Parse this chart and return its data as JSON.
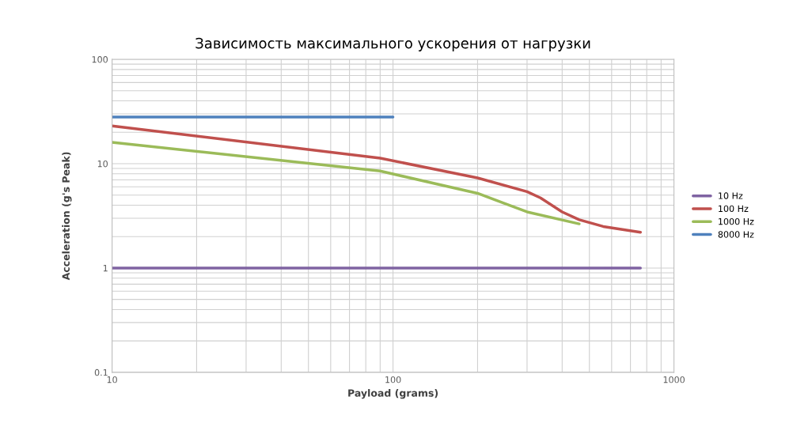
{
  "chart_data": {
    "type": "line",
    "title": "Зависимость максимального ускорения от нагрузки",
    "xlabel": "Payload (grams)",
    "ylabel": "Acceleration (g's Peak)",
    "log": "xy",
    "xlim": [
      10,
      1000
    ],
    "ylim": [
      0.1,
      100
    ],
    "xticks": [
      10,
      100,
      1000
    ],
    "yticks": [
      0.1,
      1,
      10,
      100
    ],
    "grid": true,
    "legend": "right",
    "marker": "none",
    "line_style": "solid",
    "series": [
      {
        "name": "10 Hz",
        "color": "#7f63a2",
        "x": [
          10,
          760
        ],
        "values": [
          1,
          1
        ]
      },
      {
        "name": "100 Hz",
        "color": "#c0504d",
        "x": [
          10,
          90,
          200,
          300,
          335,
          400,
          460,
          560,
          760
        ],
        "values": [
          23,
          11.3,
          7.3,
          5.4,
          4.7,
          3.45,
          2.9,
          2.5,
          2.2
        ]
      },
      {
        "name": "1000 Hz",
        "color": "#9bbb59",
        "x": [
          10,
          90,
          200,
          300,
          460
        ],
        "values": [
          16,
          8.5,
          5.2,
          3.45,
          2.65
        ]
      },
      {
        "name": "8000 Hz",
        "color": "#4f81bd",
        "x": [
          10,
          100
        ],
        "values": [
          28,
          28
        ]
      }
    ]
  }
}
